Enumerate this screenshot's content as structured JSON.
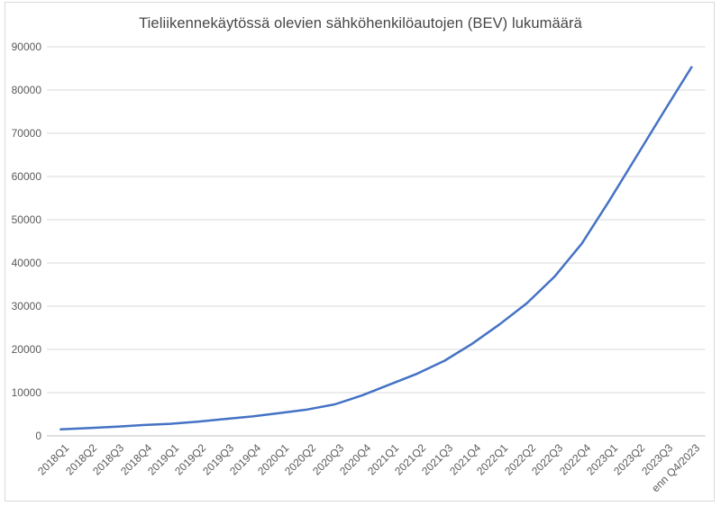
{
  "chart_data": {
    "type": "line",
    "title": "Tieliikennekäytössä olevien sähköhenkilöautojen (BEV) lukumäärä",
    "xlabel": "",
    "ylabel": "",
    "categories": [
      "2018Q1",
      "2018Q2",
      "2018Q3",
      "2018Q4",
      "2019Q1",
      "2019Q2",
      "2019Q3",
      "2019Q4",
      "2020Q1",
      "2020Q2",
      "2020Q3",
      "2020Q4",
      "2021Q1",
      "2021Q2",
      "2021Q3",
      "2021Q4",
      "2022Q1",
      "2022Q2",
      "2022Q3",
      "2022Q4",
      "2023Q1",
      "2023Q2",
      "2023Q3",
      "enn Q4/2023"
    ],
    "values": [
      1500,
      1800,
      2100,
      2500,
      2800,
      3300,
      3900,
      4500,
      5300,
      6100,
      7300,
      9400,
      11900,
      14400,
      17400,
      21300,
      25800,
      30700,
      36800,
      44500,
      54400,
      64700,
      75100,
      85300
    ],
    "ylim": [
      0,
      90000
    ],
    "yticks": [
      0,
      10000,
      20000,
      30000,
      40000,
      50000,
      60000,
      70000,
      80000,
      90000
    ],
    "grid": true,
    "legend": false,
    "line_color": "#4472c4",
    "gridline_color": "#d9d9d9",
    "axis_line_color": "#bfbfbf",
    "tick_text_color": "#595959",
    "title_color": "#464646",
    "background": "#ffffff",
    "border_color": "#d9d9d9"
  }
}
